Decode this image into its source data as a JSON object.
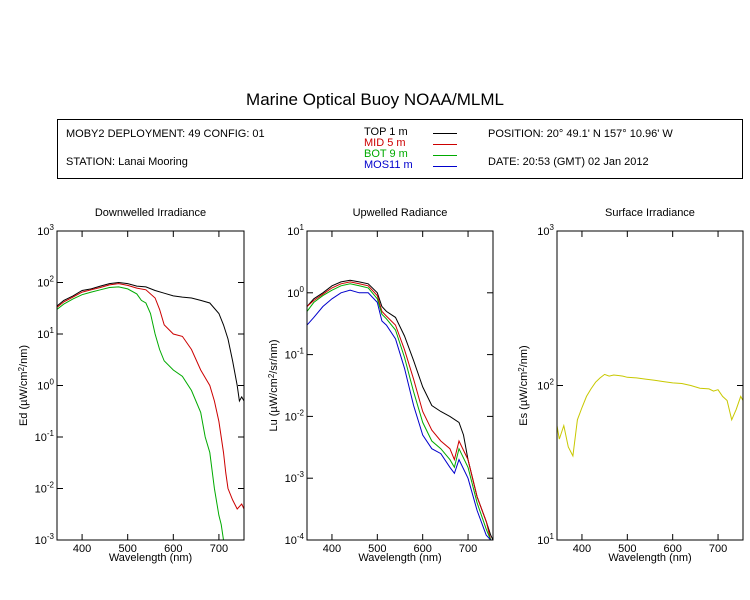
{
  "title": "Marine Optical Buoy NOAA/MLML",
  "info": {
    "deployment": "MOBY2 DEPLOYMENT: 49 CONFIG: 01",
    "station": "STATION: Lanai Mooring",
    "position": "POSITION: 20° 49.1' N   157° 10.96' W",
    "date": "DATE: 20:53 (GMT) 02 Jan 2012",
    "legend": [
      {
        "text": "TOP   1  m",
        "color": "#000000"
      },
      {
        "text": "MID   5  m",
        "color": "#cc0000"
      },
      {
        "text": "BOT   9  m",
        "color": "#00aa00"
      },
      {
        "text": "MOS11  m",
        "color": "#0000cc"
      }
    ]
  },
  "chart_data": [
    {
      "type": "line",
      "title": "Downwelled Irradiance",
      "xlabel": "Wavelength (nm)",
      "ylabel": "Ed  (µW/cm²/nm)",
      "xlim": [
        345,
        755
      ],
      "xticks": [
        "400",
        "500",
        "600",
        "700"
      ],
      "yscale": "log",
      "ylim": [
        0.001,
        1000
      ],
      "yticks": [
        "10^-3",
        "10^-2",
        "10^-1",
        "10^0",
        "10^1",
        "10^2",
        "10^3"
      ],
      "series": [
        {
          "color": "#000000",
          "x": [
            345,
            360,
            380,
            400,
            420,
            440,
            460,
            480,
            500,
            520,
            540,
            560,
            580,
            600,
            620,
            640,
            660,
            680,
            700,
            710,
            720,
            730,
            740,
            745,
            750,
            755
          ],
          "y": [
            35,
            45,
            55,
            70,
            75,
            85,
            95,
            100,
            95,
            85,
            82,
            70,
            62,
            55,
            52,
            50,
            45,
            40,
            25,
            15,
            8,
            3,
            1,
            0.5,
            0.6,
            0.5
          ]
        },
        {
          "color": "#cc0000",
          "x": [
            345,
            360,
            380,
            400,
            420,
            440,
            460,
            480,
            500,
            520,
            540,
            560,
            570,
            580,
            600,
            620,
            640,
            660,
            680,
            690,
            700,
            710,
            715,
            720,
            730,
            740,
            750,
            755
          ],
          "y": [
            33,
            42,
            52,
            65,
            72,
            80,
            90,
            95,
            88,
            78,
            72,
            50,
            30,
            15,
            10,
            9,
            5,
            2,
            1,
            0.5,
            0.2,
            0.05,
            0.02,
            0.01,
            0.006,
            0.004,
            0.005,
            0.004
          ]
        },
        {
          "color": "#00aa00",
          "x": [
            345,
            360,
            380,
            400,
            420,
            440,
            460,
            480,
            500,
            520,
            530,
            540,
            550,
            560,
            570,
            580,
            600,
            620,
            640,
            660,
            670,
            680,
            690,
            700,
            705,
            710,
            715,
            720,
            730,
            740,
            750,
            755
          ],
          "y": [
            30,
            38,
            48,
            58,
            65,
            72,
            80,
            82,
            75,
            60,
            45,
            40,
            25,
            10,
            5,
            3,
            2,
            1.5,
            0.8,
            0.3,
            0.1,
            0.05,
            0.01,
            0.003,
            0.002,
            0.001,
            0.001,
            0.001,
            0.001,
            0.001,
            0.001,
            0.001
          ]
        }
      ]
    },
    {
      "type": "line",
      "title": "Upwelled Radiance",
      "xlabel": "Wavelength (nm)",
      "ylabel": "Lu  (µW/cm²/sr/nm)",
      "xlim": [
        345,
        755
      ],
      "xticks": [
        "400",
        "500",
        "600",
        "700"
      ],
      "yscale": "log",
      "ylim": [
        0.0001,
        10
      ],
      "yticks": [
        "10^-4",
        "10^-3",
        "10^-2",
        "10^-1",
        "10^0",
        "10^1"
      ],
      "series": [
        {
          "color": "#000000",
          "x": [
            345,
            360,
            380,
            400,
            420,
            440,
            460,
            480,
            500,
            510,
            520,
            540,
            560,
            580,
            600,
            620,
            640,
            660,
            680,
            690,
            700,
            720,
            740,
            750,
            755
          ],
          "y": [
            0.6,
            0.8,
            1.0,
            1.3,
            1.5,
            1.6,
            1.5,
            1.4,
            1.0,
            0.6,
            0.5,
            0.4,
            0.2,
            0.08,
            0.03,
            0.015,
            0.012,
            0.01,
            0.008,
            0.005,
            0.002,
            0.0005,
            0.0002,
            0.00012,
            0.0001
          ]
        },
        {
          "color": "#cc0000",
          "x": [
            345,
            360,
            380,
            400,
            420,
            440,
            460,
            480,
            500,
            510,
            520,
            540,
            560,
            580,
            600,
            620,
            640,
            660,
            670,
            680,
            700,
            720,
            740,
            750,
            755
          ],
          "y": [
            0.6,
            0.75,
            0.95,
            1.2,
            1.4,
            1.5,
            1.4,
            1.3,
            0.9,
            0.5,
            0.42,
            0.3,
            0.12,
            0.04,
            0.012,
            0.006,
            0.004,
            0.003,
            0.002,
            0.004,
            0.002,
            0.0005,
            0.0002,
            0.0001,
            0.0001
          ]
        },
        {
          "color": "#00aa00",
          "x": [
            345,
            360,
            380,
            400,
            420,
            440,
            460,
            480,
            500,
            510,
            520,
            540,
            560,
            580,
            600,
            620,
            640,
            660,
            670,
            680,
            700,
            720,
            740,
            750,
            755
          ],
          "y": [
            0.5,
            0.7,
            0.9,
            1.1,
            1.3,
            1.4,
            1.3,
            1.2,
            0.8,
            0.45,
            0.38,
            0.25,
            0.09,
            0.025,
            0.008,
            0.004,
            0.003,
            0.002,
            0.0015,
            0.003,
            0.0015,
            0.0004,
            0.00015,
            0.0001,
            0.0001
          ]
        },
        {
          "color": "#0000cc",
          "x": [
            345,
            360,
            380,
            400,
            420,
            440,
            460,
            480,
            500,
            510,
            520,
            540,
            560,
            580,
            600,
            620,
            640,
            660,
            670,
            680,
            700,
            720,
            740,
            750,
            755
          ],
          "y": [
            0.3,
            0.4,
            0.6,
            0.8,
            1.0,
            1.1,
            1.0,
            1.0,
            0.7,
            0.35,
            0.3,
            0.18,
            0.06,
            0.015,
            0.005,
            0.003,
            0.0025,
            0.0015,
            0.0012,
            0.002,
            0.001,
            0.0003,
            0.00012,
            0.0001,
            0.0001
          ]
        }
      ]
    },
    {
      "type": "line",
      "title": "Surface Irradiance",
      "xlabel": "Wavelength (nm)",
      "ylabel": "Es  (µW/cm²/nm)",
      "xlim": [
        345,
        755
      ],
      "xticks": [
        "400",
        "500",
        "600",
        "700"
      ],
      "yscale": "log",
      "ylim": [
        10,
        1000
      ],
      "yticks": [
        "10^1",
        "10^2",
        "10^3"
      ],
      "series": [
        {
          "color": "#c8c800",
          "x": [
            345,
            350,
            360,
            370,
            380,
            390,
            400,
            410,
            420,
            430,
            440,
            450,
            460,
            470,
            480,
            490,
            500,
            520,
            540,
            560,
            580,
            600,
            620,
            640,
            660,
            680,
            690,
            700,
            710,
            720,
            730,
            740,
            750,
            755
          ],
          "y": [
            55,
            45,
            55,
            40,
            35,
            60,
            72,
            85,
            95,
            105,
            112,
            118,
            115,
            117,
            116,
            115,
            113,
            112,
            110,
            108,
            106,
            104,
            103,
            100,
            96,
            95,
            92,
            94,
            85,
            80,
            60,
            70,
            85,
            80
          ]
        }
      ]
    }
  ]
}
